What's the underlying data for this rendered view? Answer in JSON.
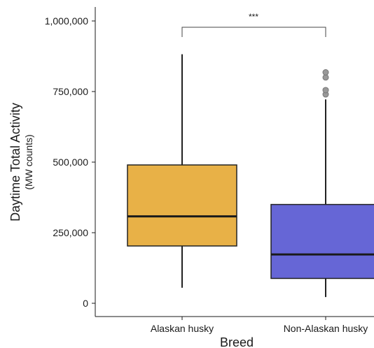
{
  "chart_data": {
    "type": "box",
    "ylabel": "Daytime Total Activity",
    "ylabel_sub": "(MW counts)",
    "xlabel": "Breed",
    "ylim": [
      -50000,
      1050000
    ],
    "yticks": [
      0,
      250000,
      500000,
      750000,
      1000000
    ],
    "ytick_labels": [
      "0",
      "250,000",
      "500,000",
      "750,000",
      "1,000,000"
    ],
    "significance": "***",
    "grid": false,
    "boxes": [
      {
        "category": "Alaskan husky",
        "color": "#E8B147",
        "whisker_low": 55000,
        "q1": 203000,
        "median": 308000,
        "q3": 490000,
        "whisker_high": 882000,
        "outliers": []
      },
      {
        "category": "Non-Alaskan husky",
        "color": "#6666D6",
        "whisker_low": 22000,
        "q1": 88000,
        "median": 173000,
        "q3": 350000,
        "whisker_high": 722000,
        "outliers": [
          740000,
          755000,
          800000,
          818000
        ]
      }
    ]
  }
}
